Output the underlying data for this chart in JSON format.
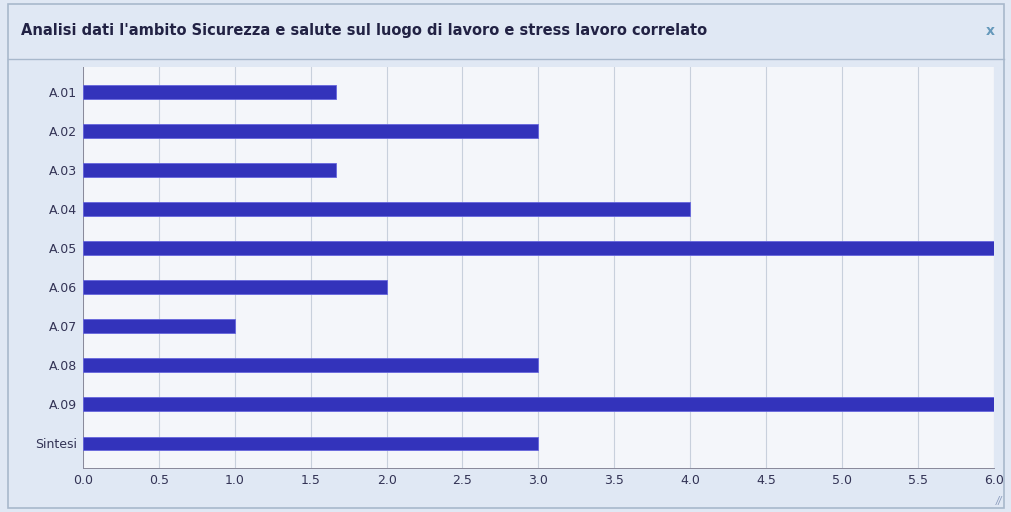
{
  "title": "Analisi dati l'ambito Sicurezza e salute sul luogo di lavoro e stress lavoro correlato",
  "categories": [
    "A.01",
    "A.02",
    "A.03",
    "A.04",
    "A.05",
    "A.06",
    "A.07",
    "A.08",
    "A.09",
    "Sintesi"
  ],
  "values": [
    1.67,
    3.0,
    1.67,
    4.0,
    6.0,
    2.0,
    1.0,
    3.0,
    6.0,
    3.0
  ],
  "bar_color": "#3333bb",
  "bar_edge_color": "#6666dd",
  "xlim": [
    0.0,
    6.0
  ],
  "xticks": [
    0.0,
    0.5,
    1.0,
    1.5,
    2.0,
    2.5,
    3.0,
    3.5,
    4.0,
    4.5,
    5.0,
    5.5,
    6.0
  ],
  "plot_bg_color": "#eef2f8",
  "outer_bg_color": "#e0e8f4",
  "title_bg_color": "#dde8f6",
  "chart_bg_color": "#f4f6fa",
  "grid_color": "#c8d0dc",
  "border_color": "#a8b8cc",
  "title_fontsize": 10.5,
  "tick_fontsize": 9,
  "bar_height": 0.35
}
